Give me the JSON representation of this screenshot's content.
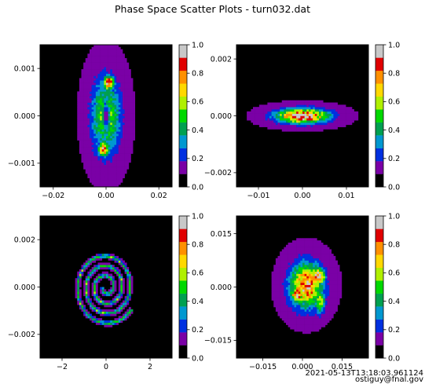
{
  "figure": {
    "title": "Phase Space Scatter Plots - turn032.dat",
    "timestamp": "2021-05-13T13:18:03.961124",
    "author": "ostiguy@fnal.gov"
  },
  "colormap": {
    "name": "nipy_spectral-like",
    "bands": [
      "#000000",
      "#7a00a6",
      "#0030e0",
      "#0098d0",
      "#00a050",
      "#00d800",
      "#b0f000",
      "#ffd800",
      "#ff9000",
      "#e00000",
      "#c8c8c8"
    ]
  },
  "chart_data": [
    {
      "type": "heatmap",
      "panel": "top-left",
      "xlim": [
        -0.025,
        0.025
      ],
      "ylim": [
        -0.0015,
        0.0015
      ],
      "x_ticks": [
        -0.02,
        0.0,
        0.02
      ],
      "x_tick_labels": [
        "−0.02",
        "0.00",
        "0.02"
      ],
      "y_ticks": [
        -0.001,
        0.0,
        0.001
      ],
      "y_tick_labels": [
        "−0.001",
        "0.000",
        "0.001"
      ],
      "colorbar": {
        "ticks": [
          0.0,
          0.2,
          0.4,
          0.6,
          0.8,
          1.0
        ],
        "labels": [
          "0.0",
          "0.2",
          "0.4",
          "0.6",
          "0.8",
          "1.0"
        ]
      },
      "blobs": [
        {
          "cx": 0.0,
          "cy": 0.0,
          "rx": 0.0065,
          "ry": 0.00095,
          "hole_rx": 0.002,
          "hole_ry": 0.0005,
          "peak": 0.55
        },
        {
          "cx": 0.001,
          "cy": 0.0007,
          "rx": 0.0025,
          "ry": 0.00018,
          "peak": 0.95
        },
        {
          "cx": -0.001,
          "cy": -0.0007,
          "rx": 0.0025,
          "ry": 0.00018,
          "peak": 0.9
        }
      ]
    },
    {
      "type": "heatmap",
      "panel": "top-right",
      "xlim": [
        -0.015,
        0.015
      ],
      "ylim": [
        -0.0025,
        0.0025
      ],
      "x_ticks": [
        -0.01,
        0.0,
        0.01
      ],
      "x_tick_labels": [
        "−0.01",
        "0.00",
        "0.01"
      ],
      "y_ticks": [
        -0.002,
        0.0,
        0.002
      ],
      "y_tick_labels": [
        "−0.002",
        "0.000",
        "0.002"
      ],
      "colorbar": {
        "ticks": [
          0.0,
          0.2,
          0.4,
          0.6,
          0.8,
          1.0
        ],
        "labels": [
          "0.0",
          "0.2",
          "0.4",
          "0.6",
          "0.8",
          "1.0"
        ]
      },
      "blobs": [
        {
          "cx": 0.0,
          "cy": 0.0,
          "rx": 0.007,
          "ry": 0.0003,
          "peak": 1.0
        }
      ]
    },
    {
      "type": "heatmap",
      "panel": "bottom-left",
      "xlim": [
        -3.0,
        3.0
      ],
      "ylim": [
        -0.003,
        0.003
      ],
      "x_ticks": [
        -2,
        0,
        2
      ],
      "x_tick_labels": [
        "−2",
        "0",
        "2"
      ],
      "y_ticks": [
        -0.002,
        0.0,
        0.002
      ],
      "y_tick_labels": [
        "−0.002",
        "0.000",
        "0.002"
      ],
      "colorbar": {
        "ticks": [
          0.0,
          0.2,
          0.4,
          0.6,
          0.8,
          1.0
        ],
        "labels": [
          "0.0",
          "0.2",
          "0.4",
          "0.6",
          "0.8",
          "1.0"
        ]
      },
      "spiral": {
        "turns": 3.4,
        "r_start": 0.08,
        "r_end": 0.72,
        "x_scale": 2.0,
        "y_scale": 0.0022,
        "peak": 0.45
      }
    },
    {
      "type": "heatmap",
      "panel": "bottom-right",
      "xlim": [
        -0.025,
        0.025
      ],
      "ylim": [
        -0.02,
        0.02
      ],
      "x_ticks": [
        -0.015,
        0.0,
        0.015
      ],
      "x_tick_labels": [
        "−0.015",
        "0.000",
        "0.015"
      ],
      "y_ticks": [
        -0.015,
        0.0,
        0.015
      ],
      "y_tick_labels": [
        "−0.015",
        "0.000",
        "0.015"
      ],
      "colorbar": {
        "ticks": [
          0.0,
          0.2,
          0.4,
          0.6,
          0.8,
          1.0
        ],
        "labels": [
          "0.0",
          "0.2",
          "0.4",
          "0.6",
          "0.8",
          "1.0"
        ]
      },
      "blobs": [
        {
          "cx": 0.0015,
          "cy": 0.0005,
          "rx": 0.0075,
          "ry": 0.0075,
          "peak": 0.85
        },
        {
          "cx": 0.006,
          "cy": 0.003,
          "rx": 0.003,
          "ry": 0.003,
          "peak": 1.0
        },
        {
          "cx": -0.002,
          "cy": -0.002,
          "rx": 0.003,
          "ry": 0.0025,
          "peak": 0.95
        },
        {
          "cx": 0.0065,
          "cy": -0.004,
          "rx": 0.0025,
          "ry": 0.004,
          "peak": 0.6
        }
      ]
    }
  ]
}
